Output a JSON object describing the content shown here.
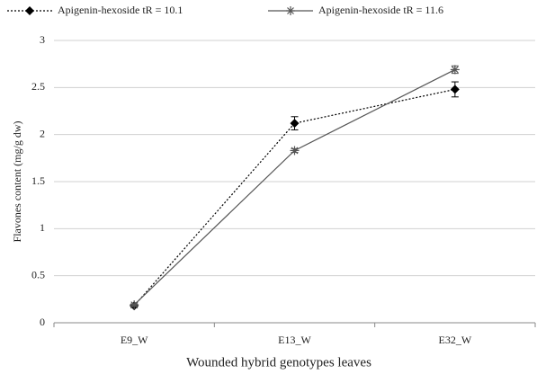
{
  "chart_data": {
    "type": "line",
    "categories": [
      "E9_W",
      "E13_W",
      "E32_W"
    ],
    "series": [
      {
        "name": "Apigenin-hexoside tR = 10.1",
        "color": "#000000",
        "dash": "2,2",
        "marker": "diamond",
        "values": [
          0.18,
          2.12,
          2.48
        ],
        "errors": [
          0.02,
          0.07,
          0.08
        ]
      },
      {
        "name": "Apigenin-hexoside tR = 11.6",
        "color": "#555555",
        "dash": "none",
        "marker": "asterisk",
        "values": [
          0.19,
          1.83,
          2.69
        ],
        "errors": [
          0.01,
          0.02,
          0.04
        ]
      }
    ],
    "ylim": [
      0,
      3
    ],
    "yticks": [
      0,
      0.5,
      1,
      1.5,
      2,
      2.5,
      3
    ],
    "grid": true,
    "ylabel": "Flavones content (mg/g dw)",
    "xlabel": "Wounded hybrid genotypes leaves",
    "legend": "top"
  }
}
